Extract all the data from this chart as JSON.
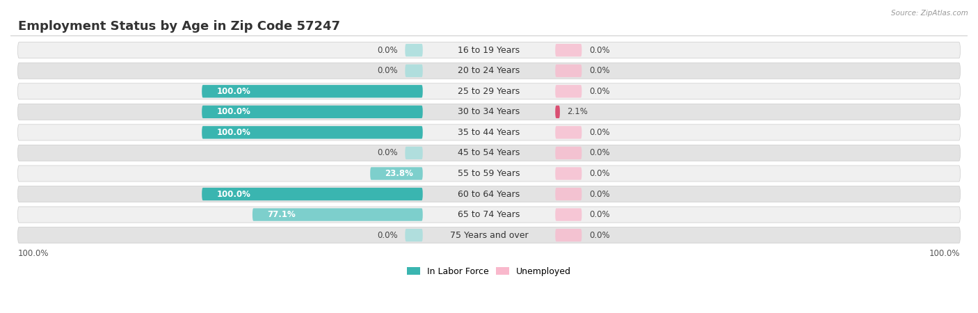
{
  "title": "Employment Status by Age in Zip Code 57247",
  "source": "Source: ZipAtlas.com",
  "categories": [
    "16 to 19 Years",
    "20 to 24 Years",
    "25 to 29 Years",
    "30 to 34 Years",
    "35 to 44 Years",
    "45 to 54 Years",
    "55 to 59 Years",
    "60 to 64 Years",
    "65 to 74 Years",
    "75 Years and over"
  ],
  "in_labor_force": [
    0.0,
    0.0,
    100.0,
    100.0,
    100.0,
    0.0,
    23.8,
    100.0,
    77.1,
    0.0
  ],
  "unemployed": [
    0.0,
    0.0,
    0.0,
    2.1,
    0.0,
    0.0,
    0.0,
    0.0,
    0.0,
    0.0
  ],
  "labor_color_full": "#3ab5b0",
  "labor_color_partial": "#7dcfcc",
  "labor_color_zero": "#a8dedd",
  "unemployed_color_zero": "#f9b8cc",
  "unemployed_color_dark": "#d94f72",
  "unemployed_color_small": "#f9b8cc",
  "row_bg_light": "#f0f0f0",
  "row_bg_dark": "#e3e3e3",
  "axis_label_left": "100.0%",
  "axis_label_right": "100.0%",
  "legend_labor": "In Labor Force",
  "legend_unemployed": "Unemployed",
  "title_fontsize": 13,
  "label_fontsize": 9,
  "value_fontsize": 8.5,
  "max_val": 100.0,
  "zero_bar_pct": 8.0,
  "small_unemp_pct": 12.0
}
